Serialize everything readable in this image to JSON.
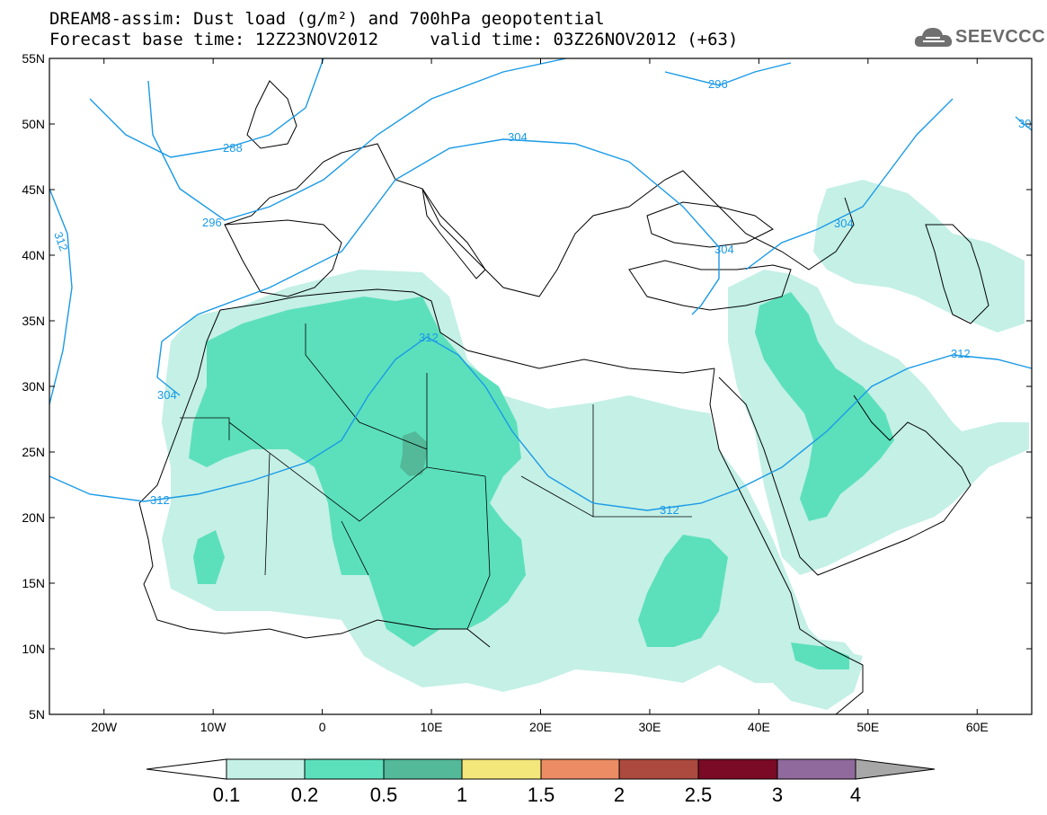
{
  "header": {
    "line1": "DREAM8-assim: Dust load (g/m²) and 700hPa geopotential",
    "line2": "Forecast base time: 12Z23NOV2012     valid time: 03Z26NOV2012 (+63)"
  },
  "logo": {
    "text": "SEEVCCC",
    "icon": "cloud-icon"
  },
  "map": {
    "lat_labels": [
      "55N",
      "50N",
      "45N",
      "40N",
      "35N",
      "30N",
      "25N",
      "20N",
      "15N",
      "10N",
      "5N"
    ],
    "lon_labels": [
      "20W",
      "10W",
      "0",
      "10E",
      "20E",
      "30E",
      "40E",
      "50E",
      "60E"
    ],
    "extent": {
      "lon": [
        -25,
        65
      ],
      "lat": [
        5,
        55
      ]
    },
    "contour_color": "#1a9ae6",
    "contour_labels": [
      "288",
      "296",
      "296",
      "304",
      "304",
      "304",
      "312",
      "312",
      "312",
      "312",
      "312",
      "30"
    ]
  },
  "colorbar": {
    "labels": [
      "0.1",
      "0.2",
      "0.5",
      "1",
      "1.5",
      "2",
      "2.5",
      "3",
      "4"
    ],
    "colors": [
      "#c4f0e6",
      "#5ce0bc",
      "#53b998",
      "#f3e67a",
      "#eb8c65",
      "#ac4a3f",
      "#7a0a25",
      "#906a9c",
      "#a7a7a7"
    ]
  }
}
